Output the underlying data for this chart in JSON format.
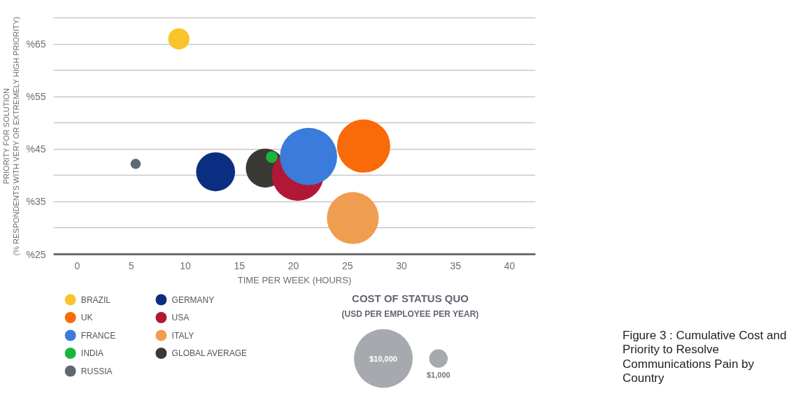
{
  "chart_data": {
    "type": "bubble",
    "xlabel": "TIME PER WEEK (HOURS)",
    "ylabel": "PRIORITY FOR SOLUTION\n(% RESPONDENTS WITH VERY OR EXTREMELY HIGH PRIORITY)",
    "legend_title": "COST OF STATUS QUO",
    "annotations": [
      "(USD PER EMPLOYEE PER YEAR)",
      "Figure 3 : Cumulative Cost and Priority to Resolve Communications Pain by Country"
    ],
    "xlim": [
      -2.2,
      42.4
    ],
    "xticks": [
      0,
      5,
      10,
      15,
      20,
      25,
      30,
      35,
      40
    ],
    "ylim": [
      25,
      70
    ],
    "yticks": [
      {
        "value": 25,
        "label": "%25"
      },
      {
        "value": 30,
        "label": null
      },
      {
        "value": 35,
        "label": "%35"
      },
      {
        "value": 40,
        "label": null
      },
      {
        "value": 45,
        "label": "%45"
      },
      {
        "value": 50,
        "label": null
      },
      {
        "value": 55,
        "label": "%55"
      },
      {
        "value": 60,
        "label": null
      },
      {
        "value": 65,
        "label": "%65"
      },
      {
        "value": 70,
        "label": null
      }
    ],
    "grid": "y",
    "legend": "bottom left",
    "marker": "circle",
    "size_legend": [
      {
        "value": 10000,
        "label": "$10,000"
      },
      {
        "value": 1000,
        "label": "$1,000"
      }
    ],
    "series": [
      {
        "name": "BRAZIL",
        "color": "#f8c42a",
        "x": [
          9.4
        ],
        "values": [
          66
        ],
        "sizes": [
          1300
        ]
      },
      {
        "name": "UK",
        "color": "#f96a08",
        "x": [
          26.5
        ],
        "values": [
          45.6
        ],
        "sizes": [
          8200
        ]
      },
      {
        "name": "FRANCE",
        "color": "#3b7bdb",
        "x": [
          21.4
        ],
        "values": [
          43.6
        ],
        "sizes": [
          9500
        ]
      },
      {
        "name": "INDIA",
        "color": "#19b53a",
        "x": [
          18.0
        ],
        "values": [
          43.5
        ],
        "sizes": [
          400
        ]
      },
      {
        "name": "RUSSIA",
        "color": "#5e6873",
        "x": [
          5.4
        ],
        "values": [
          42.2
        ],
        "sizes": [
          300
        ]
      },
      {
        "name": "GERMANY",
        "color": "#0a2f82",
        "x": [
          12.8
        ],
        "values": [
          40.7
        ],
        "sizes": [
          4400
        ]
      },
      {
        "name": "USA",
        "color": "#b01835",
        "x": [
          20.4
        ],
        "values": [
          40.1
        ],
        "sizes": [
          7800
        ]
      },
      {
        "name": "ITALY",
        "color": "#ef9d4e",
        "x": [
          25.5
        ],
        "values": [
          31.9
        ],
        "sizes": [
          7800
        ]
      },
      {
        "name": "GLOBAL AVERAGE",
        "color": "#3b3934",
        "x": [
          17.4
        ],
        "values": [
          41.4
        ],
        "sizes": [
          4400
        ]
      }
    ]
  }
}
